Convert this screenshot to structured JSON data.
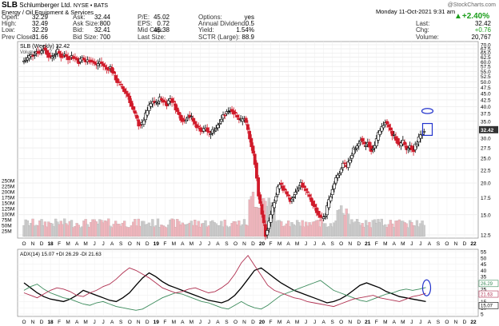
{
  "header": {
    "symbol": "SLB",
    "company": "Schlumberger Ltd.",
    "exchange": "NYSE • BATS",
    "sector": "Energy / Oil Equipment & Services",
    "watermark": "@StockCharts.com",
    "date": "Monday  11-Oct-2021  9:31 am",
    "change_pct": "+2.40%",
    "stats_col1": [
      {
        "label": "Open:",
        "value": "32.29"
      },
      {
        "label": "High:",
        "value": "32.49"
      },
      {
        "label": "Low:",
        "value": "32.29"
      },
      {
        "label": "Prev Close:",
        "value": "31.66"
      }
    ],
    "stats_col2": [
      {
        "label": "Ask:",
        "value": "32.44"
      },
      {
        "label": "Ask Size:",
        "value": "800"
      },
      {
        "label": "Bid:",
        "value": "32.41"
      },
      {
        "label": "Bid Size:",
        "value": "700"
      }
    ],
    "stats_col3": [
      {
        "label": "P/E:",
        "value": "45.02"
      },
      {
        "label": "EPS:",
        "value": "0.72"
      },
      {
        "label": "Mid Cap:",
        "value": "45.38"
      },
      {
        "label": "Last Size:",
        "value": ""
      }
    ],
    "stats_col4": [
      {
        "label": "Options:",
        "value": "yes"
      },
      {
        "label": "Annual Dividend:",
        "value": "0.5"
      },
      {
        "label": "Yield:",
        "value": "1.54%"
      },
      {
        "label": "SCTR (Large):",
        "value": "88.9"
      }
    ],
    "stats_col5": [
      {
        "label": "Last:",
        "value": "32.42"
      },
      {
        "label": "Chg:",
        "value": "+0.76"
      },
      {
        "label": "Volume:",
        "value": "20,767"
      }
    ]
  },
  "colors": {
    "up": "#000000",
    "down": "#d01a2a",
    "vol_up": "#cccccc",
    "vol_down": "#f2b6bd",
    "adx": "#000000",
    "plus_di": "#3a8a5a",
    "minus_di": "#b03050",
    "annotation": "#2233cc"
  },
  "chart_data": [
    {
      "type": "candlestick",
      "title": "SLB (Weekly) 32.42",
      "volume_label": "Volume 20,767",
      "last_price_label": "32.42",
      "price_axis_ticks": [
        "70.0",
        "67.5",
        "65.0",
        "62.5",
        "60.0",
        "57.5",
        "55.0",
        "52.5",
        "50.0",
        "47.5",
        "45.0",
        "42.5",
        "40.0",
        "37.5",
        "35.0",
        "32.5",
        "30.0",
        "27.5",
        "25.0",
        "22.5",
        "20.0",
        "17.5",
        "15.0",
        "12.5"
      ],
      "volume_axis_ticks": [
        "250M",
        "225M",
        "200M",
        "175M",
        "150M",
        "125M",
        "100M",
        "75M",
        "50M",
        "25M"
      ],
      "x_tick_labels": [
        "O",
        "N",
        "D",
        "18",
        "F",
        "M",
        "A",
        "M",
        "J",
        "J",
        "A",
        "S",
        "O",
        "N",
        "D",
        "19",
        "F",
        "M",
        "A",
        "M",
        "J",
        "J",
        "A",
        "S",
        "O",
        "N",
        "D",
        "20",
        "F",
        "M",
        "A",
        "M",
        "J",
        "J",
        "A",
        "S",
        "O",
        "N",
        "D",
        "21",
        "F",
        "M",
        "A",
        "M",
        "J",
        "J",
        "A",
        "S",
        "O",
        "N",
        "D",
        "22"
      ],
      "y_scale": "log",
      "y_range": [
        12.5,
        70
      ],
      "price_path": [
        {
          "t": 0.0,
          "p": 60
        },
        {
          "t": 0.4,
          "p": 61
        },
        {
          "t": 0.8,
          "p": 63
        },
        {
          "t": 1.2,
          "p": 64
        },
        {
          "t": 1.6,
          "p": 66
        },
        {
          "t": 2.0,
          "p": 65
        },
        {
          "t": 2.4,
          "p": 68
        },
        {
          "t": 2.8,
          "p": 65
        },
        {
          "t": 3.2,
          "p": 62
        },
        {
          "t": 3.6,
          "p": 64
        },
        {
          "t": 4.0,
          "p": 66
        },
        {
          "t": 4.4,
          "p": 63
        },
        {
          "t": 4.8,
          "p": 64
        },
        {
          "t": 5.2,
          "p": 62
        },
        {
          "t": 5.6,
          "p": 63
        },
        {
          "t": 6.0,
          "p": 62
        },
        {
          "t": 6.4,
          "p": 60
        },
        {
          "t": 6.8,
          "p": 62
        },
        {
          "t": 7.2,
          "p": 60
        },
        {
          "t": 7.6,
          "p": 61
        },
        {
          "t": 8.0,
          "p": 60
        },
        {
          "t": 8.4,
          "p": 58
        },
        {
          "t": 8.8,
          "p": 60
        },
        {
          "t": 9.2,
          "p": 58
        },
        {
          "t": 9.6,
          "p": 56
        },
        {
          "t": 10.0,
          "p": 57
        },
        {
          "t": 10.4,
          "p": 53
        },
        {
          "t": 10.8,
          "p": 50
        },
        {
          "t": 11.2,
          "p": 48
        },
        {
          "t": 11.6,
          "p": 46
        },
        {
          "t": 12.0,
          "p": 44
        },
        {
          "t": 12.4,
          "p": 40
        },
        {
          "t": 12.8,
          "p": 37
        },
        {
          "t": 13.2,
          "p": 34
        },
        {
          "t": 13.6,
          "p": 34
        },
        {
          "t": 14.0,
          "p": 37
        },
        {
          "t": 14.4,
          "p": 40
        },
        {
          "t": 14.8,
          "p": 42
        },
        {
          "t": 15.2,
          "p": 41
        },
        {
          "t": 15.6,
          "p": 43
        },
        {
          "t": 16.0,
          "p": 42
        },
        {
          "t": 16.4,
          "p": 41
        },
        {
          "t": 16.8,
          "p": 43
        },
        {
          "t": 17.2,
          "p": 41
        },
        {
          "t": 17.6,
          "p": 38
        },
        {
          "t": 18.0,
          "p": 36
        },
        {
          "t": 18.4,
          "p": 35
        },
        {
          "t": 18.8,
          "p": 37
        },
        {
          "t": 19.2,
          "p": 36
        },
        {
          "t": 19.6,
          "p": 34
        },
        {
          "t": 20.0,
          "p": 33
        },
        {
          "t": 20.4,
          "p": 32
        },
        {
          "t": 20.8,
          "p": 33
        },
        {
          "t": 21.2,
          "p": 31
        },
        {
          "t": 21.6,
          "p": 32
        },
        {
          "t": 22.0,
          "p": 33
        },
        {
          "t": 22.4,
          "p": 35
        },
        {
          "t": 22.8,
          "p": 37
        },
        {
          "t": 23.2,
          "p": 38
        },
        {
          "t": 23.6,
          "p": 39
        },
        {
          "t": 24.0,
          "p": 38
        },
        {
          "t": 24.4,
          "p": 36
        },
        {
          "t": 24.8,
          "p": 35
        },
        {
          "t": 25.2,
          "p": 36
        },
        {
          "t": 25.6,
          "p": 32
        },
        {
          "t": 26.0,
          "p": 28
        },
        {
          "t": 26.4,
          "p": 24
        },
        {
          "t": 26.8,
          "p": 18
        },
        {
          "t": 27.2,
          "p": 15
        },
        {
          "t": 27.6,
          "p": 12.5
        },
        {
          "t": 28.0,
          "p": 14
        },
        {
          "t": 28.4,
          "p": 16
        },
        {
          "t": 28.8,
          "p": 18
        },
        {
          "t": 29.2,
          "p": 20
        },
        {
          "t": 29.6,
          "p": 19
        },
        {
          "t": 30.0,
          "p": 18
        },
        {
          "t": 30.4,
          "p": 17
        },
        {
          "t": 30.8,
          "p": 18
        },
        {
          "t": 31.2,
          "p": 19
        },
        {
          "t": 31.6,
          "p": 20
        },
        {
          "t": 32.0,
          "p": 19
        },
        {
          "t": 32.4,
          "p": 18
        },
        {
          "t": 32.8,
          "p": 17
        },
        {
          "t": 33.2,
          "p": 16
        },
        {
          "t": 33.6,
          "p": 15
        },
        {
          "t": 34.0,
          "p": 14.5
        },
        {
          "t": 34.4,
          "p": 15
        },
        {
          "t": 34.8,
          "p": 17
        },
        {
          "t": 35.2,
          "p": 19
        },
        {
          "t": 35.6,
          "p": 21
        },
        {
          "t": 36.0,
          "p": 22
        },
        {
          "t": 36.4,
          "p": 24
        },
        {
          "t": 36.8,
          "p": 23
        },
        {
          "t": 37.2,
          "p": 25
        },
        {
          "t": 37.6,
          "p": 27
        },
        {
          "t": 38.0,
          "p": 28
        },
        {
          "t": 38.4,
          "p": 30
        },
        {
          "t": 38.8,
          "p": 28
        },
        {
          "t": 39.2,
          "p": 29
        },
        {
          "t": 39.6,
          "p": 27
        },
        {
          "t": 40.0,
          "p": 28
        },
        {
          "t": 40.4,
          "p": 31
        },
        {
          "t": 40.8,
          "p": 33
        },
        {
          "t": 41.2,
          "p": 35
        },
        {
          "t": 41.6,
          "p": 33
        },
        {
          "t": 42.0,
          "p": 31
        },
        {
          "t": 42.4,
          "p": 30
        },
        {
          "t": 42.8,
          "p": 28
        },
        {
          "t": 43.2,
          "p": 29
        },
        {
          "t": 43.6,
          "p": 27
        },
        {
          "t": 44.0,
          "p": 28
        },
        {
          "t": 44.4,
          "p": 27
        },
        {
          "t": 44.8,
          "p": 29
        },
        {
          "t": 45.2,
          "p": 31
        },
        {
          "t": 45.6,
          "p": 32.4
        }
      ],
      "annotations": [
        {
          "shape": "ellipse",
          "note": "blue oval above price near 38.5"
        },
        {
          "shape": "rectangle",
          "note": "blue box around latest bars near 32.5"
        }
      ]
    },
    {
      "type": "line",
      "title": "ADX(14) 15.07  +DI 26.29  -DI 21.63",
      "y_axis_ticks": [
        "55",
        "50",
        "45",
        "40",
        "35",
        "30",
        "25",
        "20",
        "15",
        "10",
        "5"
      ],
      "right_labels": [
        "26.29",
        "21.63",
        "15.07"
      ],
      "y_range": [
        5,
        55
      ],
      "series": [
        {
          "name": "ADX(14)",
          "values": [
            30,
            26,
            22,
            19,
            17,
            16,
            15,
            17,
            20,
            24,
            22,
            20,
            18,
            16,
            15,
            18,
            22,
            28,
            34,
            38,
            35,
            31,
            28,
            26,
            24,
            22,
            20,
            18,
            16,
            15,
            14,
            16,
            20,
            26,
            33,
            40,
            42,
            38,
            34,
            30,
            27,
            24,
            22,
            20,
            18,
            16,
            14,
            15,
            17,
            20,
            24,
            28,
            30,
            28,
            26,
            23,
            21,
            19,
            18,
            17,
            16,
            15
          ]
        },
        {
          "name": "+DI",
          "values": [
            24,
            27,
            29,
            25,
            22,
            20,
            18,
            17,
            15,
            13,
            12,
            14,
            15,
            13,
            11,
            10,
            9,
            8,
            9,
            12,
            15,
            18,
            20,
            22,
            21,
            19,
            17,
            15,
            14,
            12,
            10,
            9,
            12,
            15,
            12,
            10,
            9,
            12,
            16,
            20,
            22,
            24,
            26,
            28,
            30,
            32,
            28,
            24,
            22,
            20,
            18,
            16,
            15,
            17,
            19,
            21,
            22,
            24,
            25,
            24,
            25,
            26.29
          ]
        },
        {
          "name": "-DI",
          "values": [
            22,
            20,
            18,
            21,
            24,
            26,
            25,
            23,
            20,
            19,
            22,
            24,
            27,
            29,
            33,
            38,
            42,
            40,
            37,
            34,
            30,
            26,
            24,
            22,
            23,
            25,
            26,
            24,
            22,
            23,
            26,
            30,
            37,
            46,
            52,
            44,
            36,
            28,
            24,
            22,
            20,
            18,
            17,
            15,
            14,
            13,
            12,
            11,
            13,
            15,
            17,
            18,
            19,
            20,
            18,
            17,
            16,
            15,
            17,
            19,
            20,
            21.63
          ]
        }
      ]
    }
  ]
}
